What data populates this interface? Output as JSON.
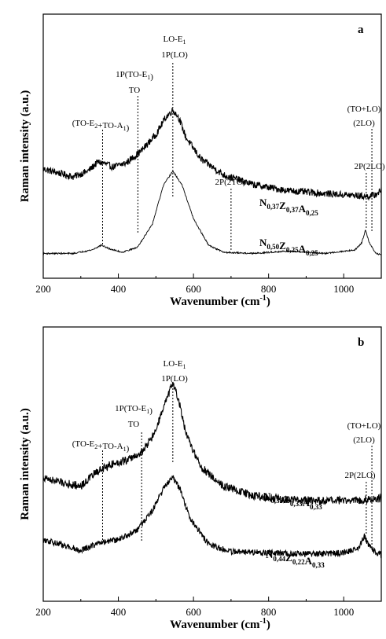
{
  "chart_data": [
    {
      "type": "line",
      "panel": "a",
      "xlabel": "Wavenumber (cm",
      "xlabel_sup": "-1",
      "xlabel_close": ")",
      "ylabel": "Raman intensity (a.u.)",
      "xlim": [
        200,
        1100
      ],
      "xticks": [
        200,
        400,
        600,
        800,
        1000
      ],
      "grid": false,
      "series": [
        {
          "label_parts": [
            [
              "N",
              "0,37"
            ],
            [
              "Z",
              "0,37"
            ],
            [
              "A",
              "0,25"
            ]
          ],
          "noise": 0.035,
          "points": [
            [
              200,
              0.4
            ],
            [
              240,
              0.36
            ],
            [
              280,
              0.32
            ],
            [
              320,
              0.38
            ],
            [
              345,
              0.47
            ],
            [
              360,
              0.46
            ],
            [
              385,
              0.42
            ],
            [
              420,
              0.46
            ],
            [
              460,
              0.58
            ],
            [
              500,
              0.75
            ],
            [
              525,
              0.92
            ],
            [
              545,
              1.0
            ],
            [
              560,
              0.93
            ],
            [
              580,
              0.72
            ],
            [
              620,
              0.5
            ],
            [
              680,
              0.34
            ],
            [
              760,
              0.24
            ],
            [
              850,
              0.18
            ],
            [
              950,
              0.15
            ],
            [
              1030,
              0.13
            ],
            [
              1060,
              0.12
            ],
            [
              1080,
              0.13
            ],
            [
              1100,
              0.18
            ]
          ]
        },
        {
          "label_parts": [
            [
              "N",
              "0,50"
            ],
            [
              "Z",
              "0,25"
            ],
            [
              "A",
              "0,25"
            ]
          ],
          "noise": 0.006,
          "points": [
            [
              200,
              0.01
            ],
            [
              280,
              0.01
            ],
            [
              330,
              0.04
            ],
            [
              355,
              0.08
            ],
            [
              375,
              0.05
            ],
            [
              410,
              0.02
            ],
            [
              450,
              0.06
            ],
            [
              490,
              0.25
            ],
            [
              520,
              0.58
            ],
            [
              545,
              0.7
            ],
            [
              570,
              0.58
            ],
            [
              600,
              0.3
            ],
            [
              640,
              0.08
            ],
            [
              680,
              0.02
            ],
            [
              760,
              0.01
            ],
            [
              850,
              0.03
            ],
            [
              950,
              0.01
            ],
            [
              1030,
              0.04
            ],
            [
              1048,
              0.1
            ],
            [
              1058,
              0.21
            ],
            [
              1068,
              0.1
            ],
            [
              1085,
              0.01
            ],
            [
              1100,
              0.0
            ]
          ]
        }
      ],
      "annotations": [
        {
          "parts": [
            [
              "(TO-E",
              ""
            ],
            [
              "",
              "2"
            ],
            [
              "+TO-A",
              ""
            ],
            [
              "",
              "1"
            ],
            [
              ")",
              ""
            ]
          ],
          "x": 358
        },
        {
          "parts": [
            [
              "1P(TO-E",
              ""
            ],
            [
              "",
              "1"
            ],
            [
              ")",
              ""
            ]
          ],
          "line2": "TO",
          "x": 452
        },
        {
          "parts": [
            [
              "LO-E",
              ""
            ],
            [
              "",
              "1"
            ]
          ],
          "line2": "1P(LO)",
          "x": 545
        },
        {
          "parts": [
            [
              "2P(2TO)",
              ""
            ]
          ],
          "x": 700
        },
        {
          "parts": [
            [
              "2P(2LO)",
              ""
            ]
          ],
          "x": 1060
        },
        {
          "parts": [
            [
              "(TO+LO)",
              ""
            ]
          ],
          "line2": "(2LO)",
          "x": 1075
        }
      ]
    },
    {
      "type": "line",
      "panel": "b",
      "xlabel": "Wavenumber (cm",
      "xlabel_sup": "-1",
      "xlabel_close": ")",
      "ylabel": "Raman intensity (a.u.)",
      "xlim": [
        200,
        1100
      ],
      "xticks": [
        200,
        400,
        600,
        800,
        1000
      ],
      "grid": false,
      "series": [
        {
          "label_parts": [
            [
              "N",
              "0,33"
            ],
            [
              "Z",
              "0,33"
            ],
            [
              "A",
              "0,33"
            ]
          ],
          "noise": 0.03,
          "points": [
            [
              200,
              0.3
            ],
            [
              260,
              0.26
            ],
            [
              300,
              0.24
            ],
            [
              340,
              0.34
            ],
            [
              380,
              0.4
            ],
            [
              420,
              0.43
            ],
            [
              460,
              0.48
            ],
            [
              495,
              0.62
            ],
            [
              525,
              0.85
            ],
            [
              545,
              1.0
            ],
            [
              560,
              0.88
            ],
            [
              580,
              0.62
            ],
            [
              620,
              0.38
            ],
            [
              680,
              0.24
            ],
            [
              760,
              0.17
            ],
            [
              850,
              0.14
            ],
            [
              950,
              0.13
            ],
            [
              1050,
              0.14
            ],
            [
              1100,
              0.15
            ]
          ]
        },
        {
          "label_parts": [
            [
              "N",
              "0,44"
            ],
            [
              "Z",
              "0,22"
            ],
            [
              "A",
              "0,33"
            ]
          ],
          "noise": 0.025,
          "points": [
            [
              200,
              0.14
            ],
            [
              260,
              0.09
            ],
            [
              300,
              0.05
            ],
            [
              340,
              0.1
            ],
            [
              360,
              0.12
            ],
            [
              400,
              0.14
            ],
            [
              450,
              0.22
            ],
            [
              490,
              0.38
            ],
            [
              520,
              0.56
            ],
            [
              545,
              0.66
            ],
            [
              565,
              0.55
            ],
            [
              590,
              0.32
            ],
            [
              640,
              0.1
            ],
            [
              700,
              0.04
            ],
            [
              800,
              0.03
            ],
            [
              900,
              0.02
            ],
            [
              1000,
              0.03
            ],
            [
              1040,
              0.07
            ],
            [
              1055,
              0.17
            ],
            [
              1068,
              0.08
            ],
            [
              1090,
              0.02
            ],
            [
              1100,
              0.02
            ]
          ]
        }
      ],
      "annotations": [
        {
          "parts": [
            [
              "(TO-E",
              ""
            ],
            [
              "",
              "2"
            ],
            [
              "+TO-A",
              ""
            ],
            [
              "",
              "1"
            ],
            [
              ")",
              ""
            ]
          ],
          "x": 358
        },
        {
          "parts": [
            [
              "1P(TO-E",
              ""
            ],
            [
              "",
              "1"
            ],
            [
              ")",
              ""
            ]
          ],
          "line2": "TO",
          "x": 462
        },
        {
          "parts": [
            [
              "LO-E",
              ""
            ],
            [
              "",
              "1"
            ]
          ],
          "line2": "1P(LO)",
          "x": 545
        },
        {
          "parts": [
            [
              "2P(2LO)",
              ""
            ]
          ],
          "x": 1060
        },
        {
          "parts": [
            [
              "(TO+LO)",
              ""
            ]
          ],
          "line2": "(2LO)",
          "x": 1075
        }
      ]
    }
  ]
}
